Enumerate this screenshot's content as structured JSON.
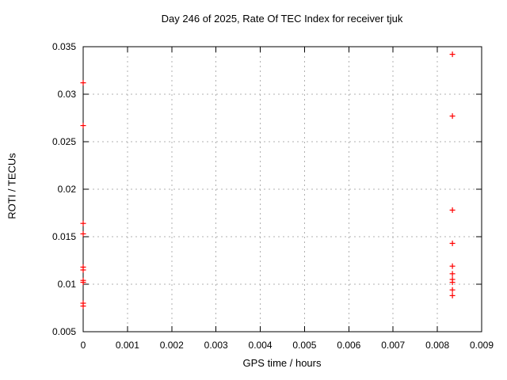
{
  "chart_data": {
    "type": "scatter",
    "title": "Day 246 of 2025, Rate Of TEC Index for receiver tjuk",
    "xlabel": "GPS time / hours",
    "ylabel": "ROTI / TECUs",
    "xlim": [
      0,
      0.009
    ],
    "ylim": [
      0.005,
      0.035
    ],
    "grid": true,
    "legend": false,
    "x_ticks": {
      "values": [
        0,
        0.001,
        0.002,
        0.003,
        0.004,
        0.005,
        0.006,
        0.007,
        0.008,
        0.009
      ],
      "labels": [
        "0",
        "0.001",
        "0.002",
        "0.003",
        "0.004",
        "0.005",
        "0.006",
        "0.007",
        "0.008",
        "0.009"
      ]
    },
    "y_ticks": {
      "values": [
        0.005,
        0.01,
        0.015,
        0.02,
        0.025,
        0.03,
        0.035
      ],
      "labels": [
        "0.005",
        "0.01",
        "0.015",
        "0.02",
        "0.025",
        "0.03",
        "0.035"
      ]
    },
    "marker": {
      "shape": "plus",
      "color": "#ff0000",
      "size": 7
    },
    "series": [
      {
        "name": "ROTI",
        "points": [
          [
            0,
            0.0312
          ],
          [
            0,
            0.0267
          ],
          [
            0,
            0.0164
          ],
          [
            0,
            0.0153
          ],
          [
            0,
            0.0118
          ],
          [
            0,
            0.0115
          ],
          [
            0,
            0.0104
          ],
          [
            0,
            0.0102
          ],
          [
            0,
            0.008
          ],
          [
            0,
            0.0077
          ],
          [
            0.00834,
            0.0342
          ],
          [
            0.00834,
            0.0277
          ],
          [
            0.00834,
            0.0178
          ],
          [
            0.00834,
            0.0143
          ],
          [
            0.00834,
            0.0119
          ],
          [
            0.00834,
            0.0111
          ],
          [
            0.00834,
            0.0105
          ],
          [
            0.00834,
            0.0102
          ],
          [
            0.00834,
            0.0094
          ],
          [
            0.00834,
            0.0088
          ]
        ]
      }
    ]
  }
}
